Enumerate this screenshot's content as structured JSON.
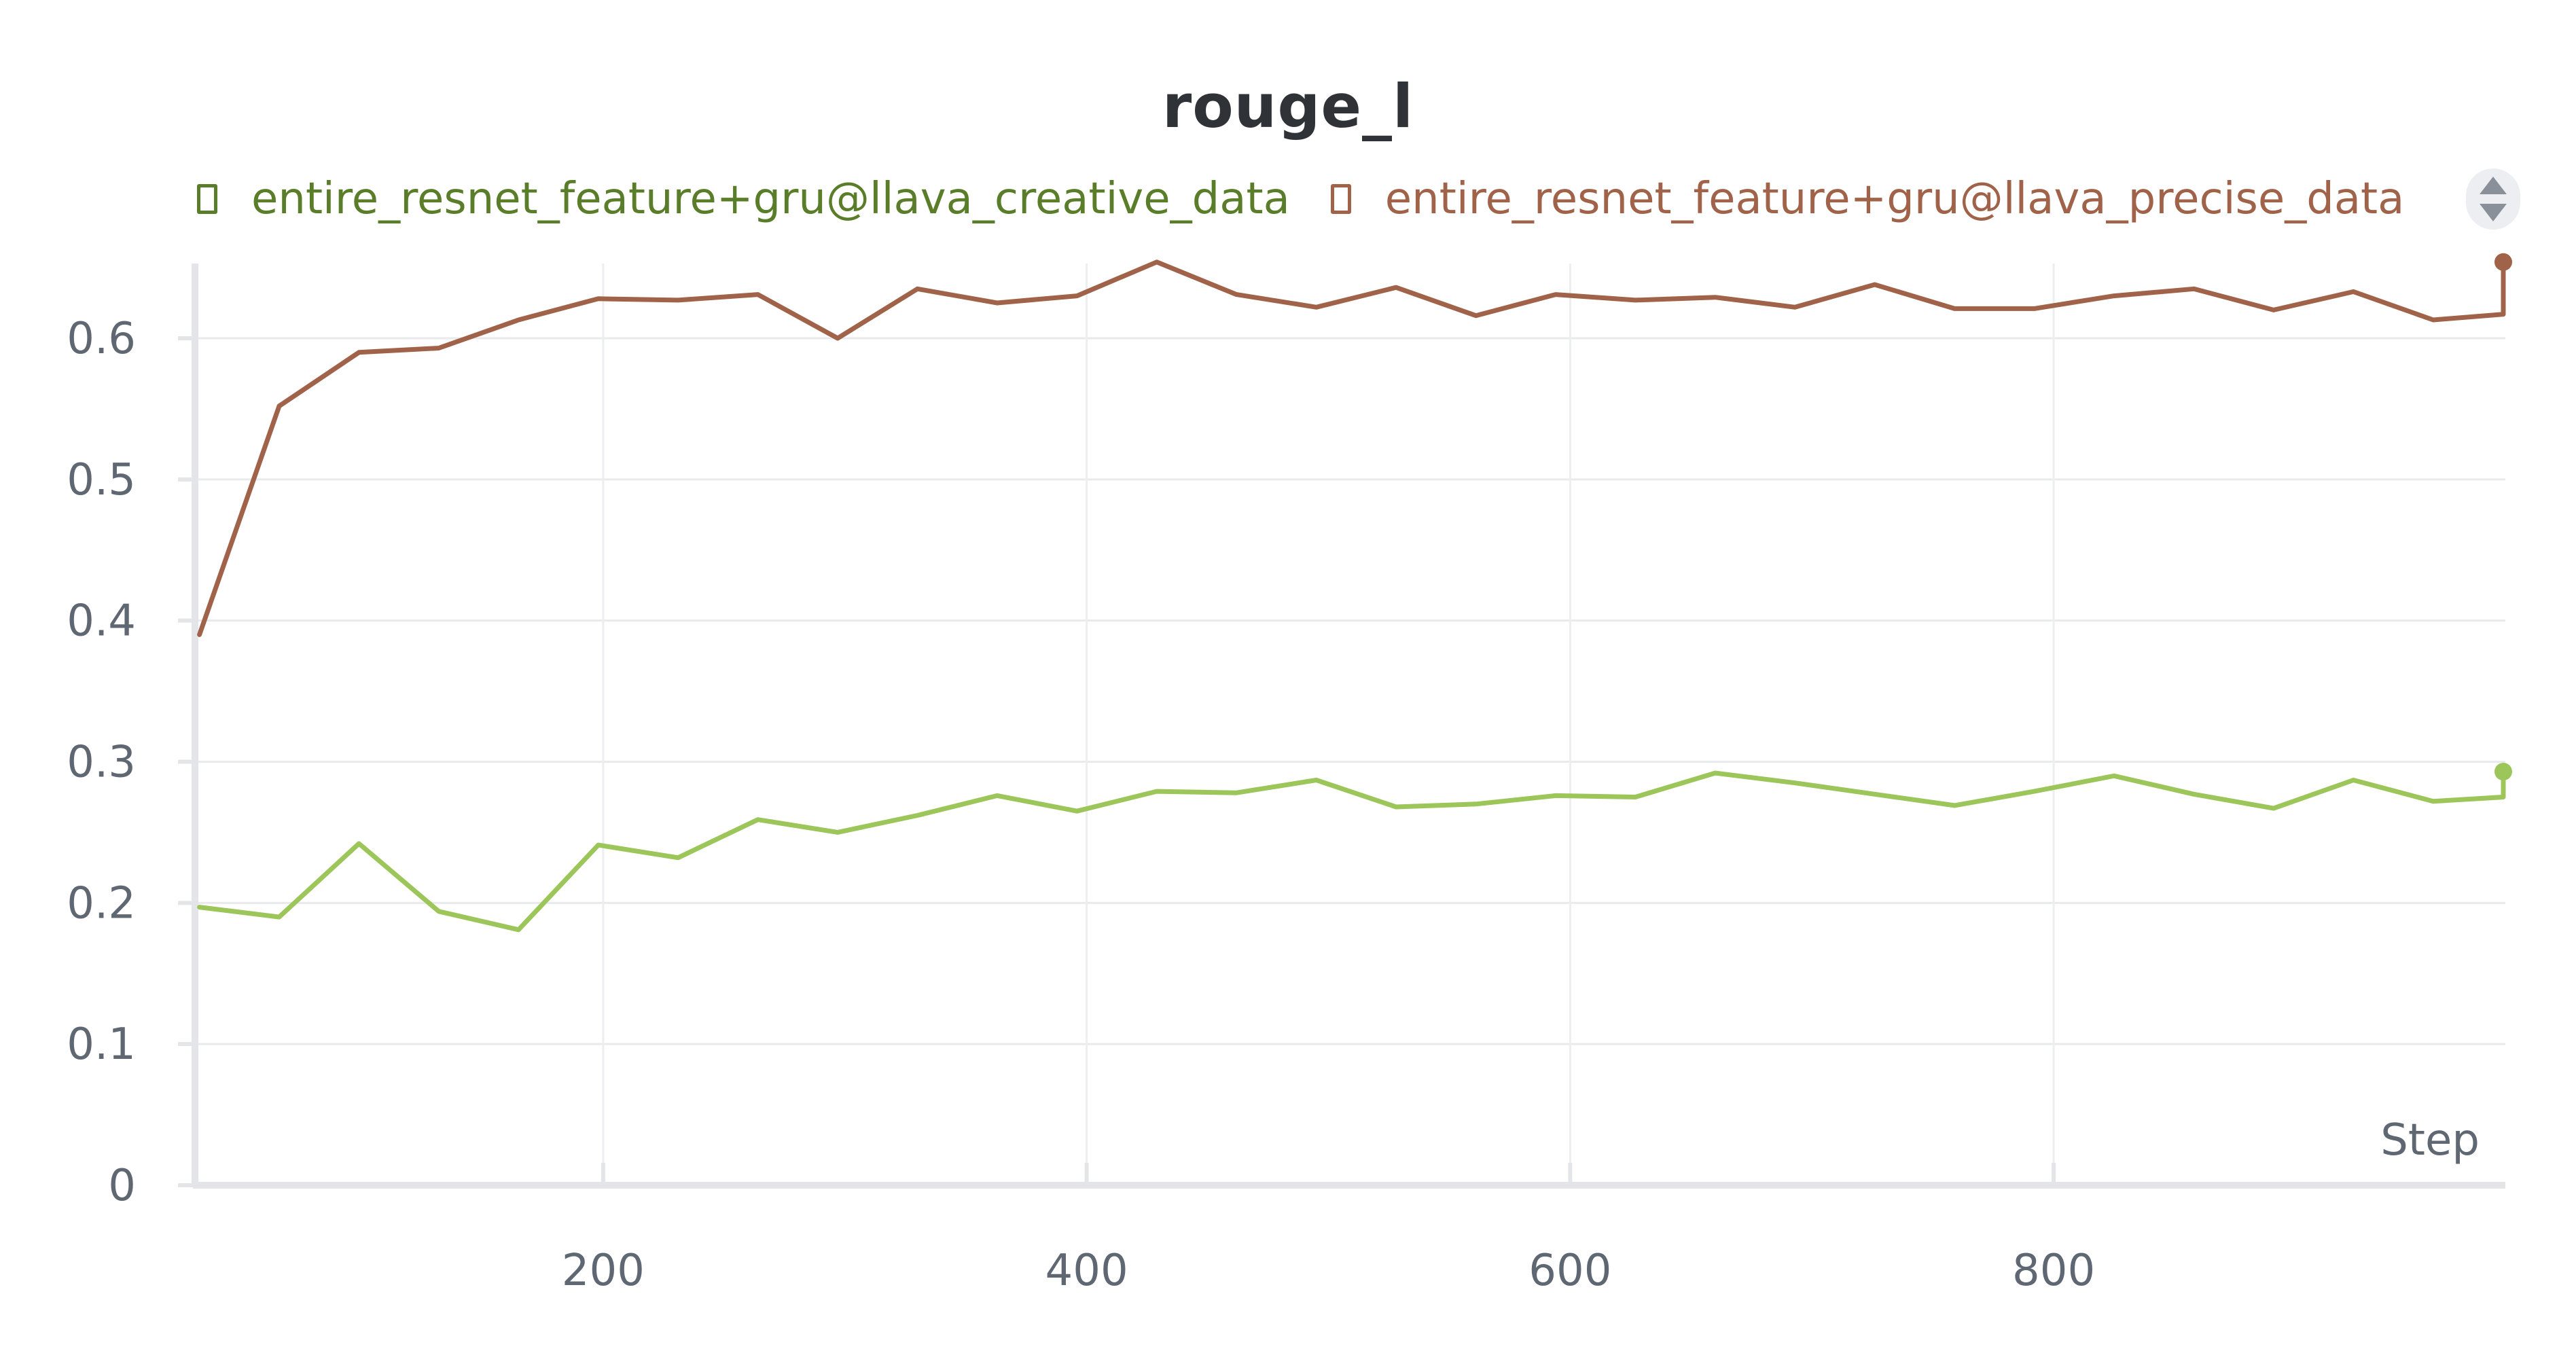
{
  "chart_data": {
    "type": "line",
    "title": "rouge_l",
    "xlabel": "Step",
    "ylabel": "",
    "xlim": [
      32,
      986
    ],
    "ylim": [
      0,
      0.65
    ],
    "x_ticks": [
      200,
      400,
      600,
      800
    ],
    "y_ticks": [
      0,
      0.1,
      0.2,
      0.3,
      0.4,
      0.5,
      0.6
    ],
    "y_tick_labels": [
      "0",
      "0.1",
      "0.2",
      "0.3",
      "0.4",
      "0.5",
      "0.6"
    ],
    "grid": true,
    "legend_position": "top",
    "series": [
      {
        "name": "entire_resnet_feature+gru@llava_creative_data",
        "color": "#9cc55a",
        "legend_color": "#5a7d2a",
        "x": [
          33,
          66,
          99,
          132,
          165,
          198,
          231,
          264,
          297,
          330,
          363,
          396,
          429,
          462,
          495,
          528,
          561,
          594,
          627,
          660,
          693,
          726,
          759,
          792,
          825,
          858,
          891,
          924,
          957,
          986,
          986
        ],
        "y": [
          0.197,
          0.19,
          0.242,
          0.194,
          0.181,
          0.241,
          0.232,
          0.259,
          0.25,
          0.262,
          0.276,
          0.265,
          0.279,
          0.278,
          0.287,
          0.268,
          0.27,
          0.276,
          0.275,
          0.292,
          0.285,
          0.277,
          0.269,
          0.279,
          0.29,
          0.277,
          0.267,
          0.287,
          0.272,
          0.275,
          0.293
        ]
      },
      {
        "name": "entire_resnet_feature+gru@llava_precise_data",
        "color": "#a0634a",
        "legend_color": "#a0634a",
        "x": [
          33,
          66,
          99,
          132,
          165,
          198,
          231,
          264,
          297,
          330,
          363,
          396,
          429,
          462,
          495,
          528,
          561,
          594,
          627,
          660,
          693,
          726,
          759,
          792,
          825,
          858,
          891,
          924,
          957,
          986,
          986
        ],
        "y": [
          0.39,
          0.552,
          0.59,
          0.593,
          0.613,
          0.628,
          0.627,
          0.631,
          0.6,
          0.635,
          0.625,
          0.63,
          0.654,
          0.631,
          0.622,
          0.636,
          0.616,
          0.631,
          0.627,
          0.629,
          0.622,
          0.638,
          0.621,
          0.621,
          0.63,
          0.635,
          0.62,
          0.633,
          0.613,
          0.617,
          0.654
        ]
      }
    ]
  },
  "legend": {
    "scroll_up_icon": "triangle-up-icon",
    "scroll_down_icon": "triangle-down-icon"
  }
}
